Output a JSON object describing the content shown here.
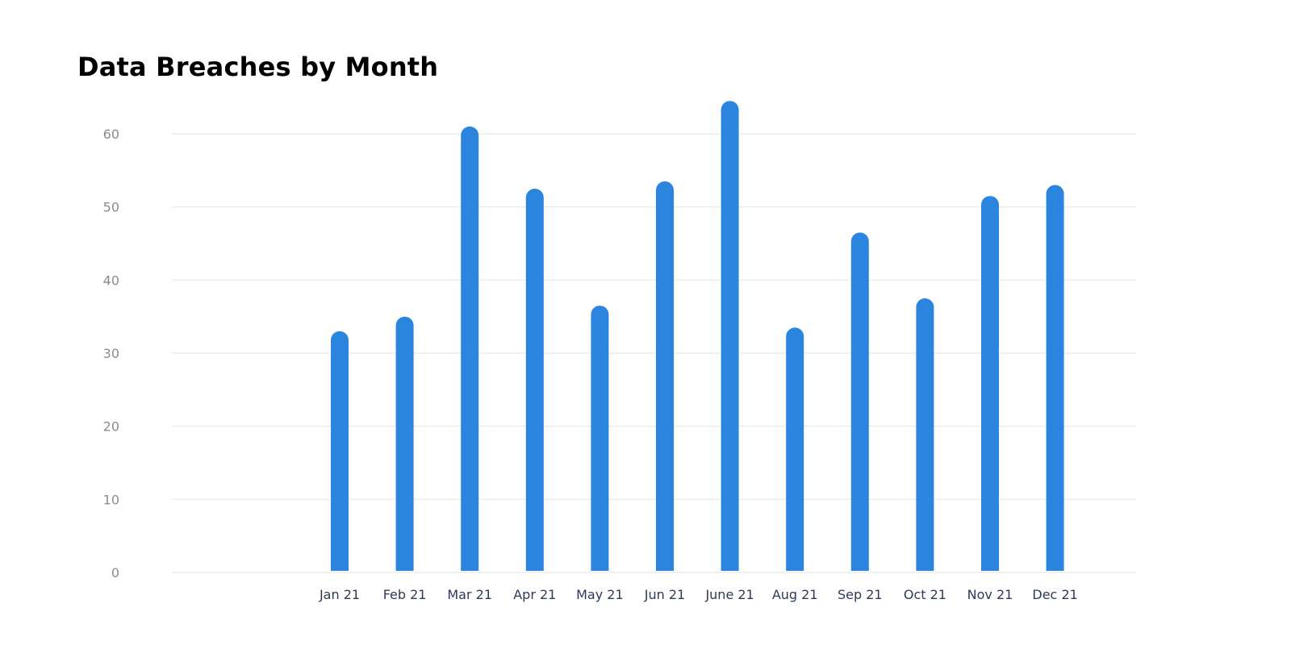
{
  "chart_data": {
    "type": "bar",
    "title": "Data Breaches by Month",
    "categories": [
      "Jan 21",
      "Feb 21",
      "Mar 21",
      "Apr 21",
      "May 21",
      "Jun 21",
      "June 21",
      "Aug 21",
      "Sep 21",
      "Oct 21",
      "Nov 21",
      "Dec 21"
    ],
    "values": [
      33,
      35,
      61,
      52.5,
      36.5,
      53.5,
      64.5,
      33.5,
      46.5,
      37.5,
      51.5,
      53
    ],
    "yticks": [
      0,
      10,
      20,
      30,
      40,
      50,
      60
    ],
    "ylim": [
      0,
      66
    ],
    "xlabel": "",
    "ylabel": "",
    "grid": true,
    "legend": "none",
    "bar_color": "#2b84de"
  }
}
